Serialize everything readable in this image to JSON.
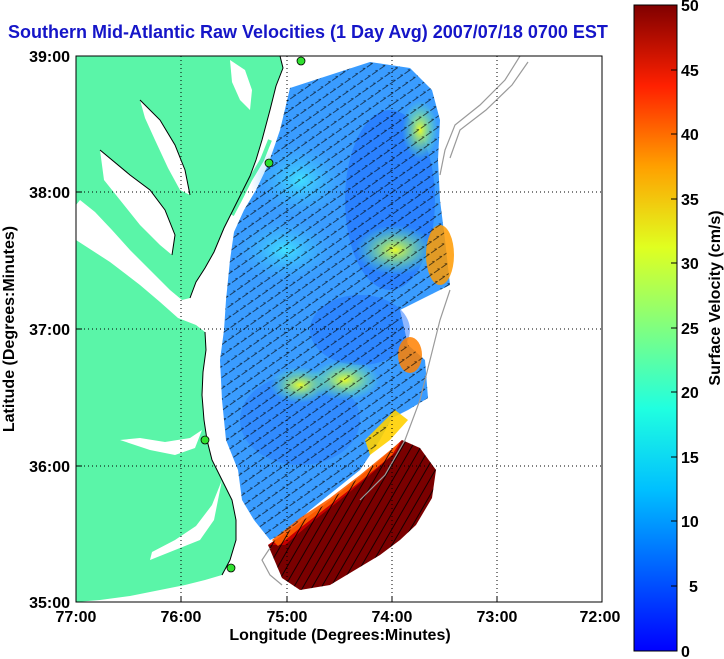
{
  "title": "Southern Mid-Atlantic Raw Velocities (1 Day Avg) 2007/07/18 0700 EST",
  "axes": {
    "x_label": "Longitude (Degrees:Minutes)",
    "y_label": "Latitude (Degrees:Minutes)",
    "x_ticks": [
      "77:00",
      "76:00",
      "75:00",
      "74:00",
      "73:00",
      "72:00"
    ],
    "y_ticks": [
      "39:00",
      "38:00",
      "37:00",
      "36:00",
      "35:00"
    ]
  },
  "colorbar": {
    "label": "Surface Velocity (cm/s)",
    "ticks": [
      "50",
      "45",
      "40",
      "35",
      "30",
      "25",
      "20",
      "15",
      "10",
      "5",
      "0"
    ],
    "range": [
      0,
      50
    ]
  },
  "colors": {
    "land": "#5af5a8",
    "water": "#ffffff",
    "title": "#1515c8",
    "bathymetry": "#9a9a9a"
  }
}
